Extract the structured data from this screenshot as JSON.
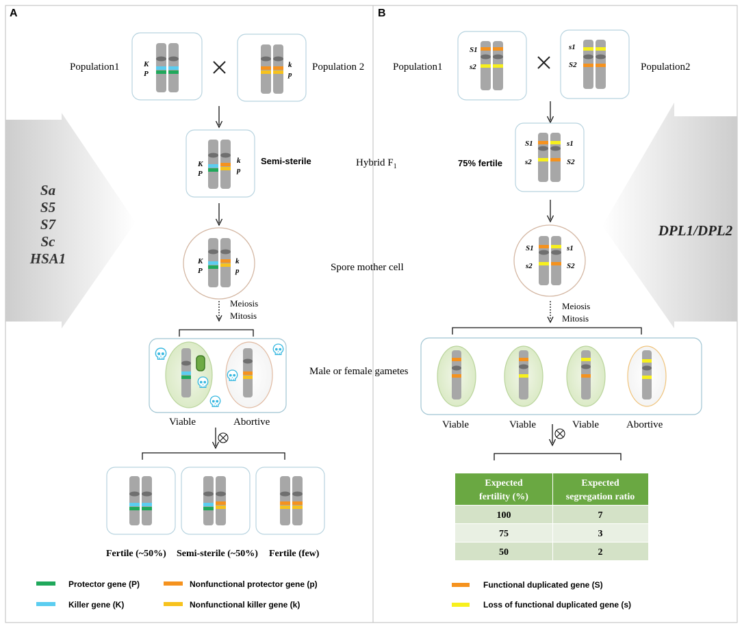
{
  "panelA": {
    "letter": "A",
    "pop1": "Population1",
    "pop2": "Population 2",
    "side_genes": [
      "Sa",
      "S5",
      "S7",
      "Sc",
      "HSA1"
    ],
    "parent1": {
      "l1": "K",
      "l2": "P"
    },
    "parent2": {
      "l1": "k",
      "l2": "p"
    },
    "f1_label": "Semi-sterile",
    "meiosis": "Meiosis",
    "mitosis": "Mitosis",
    "viable": "Viable",
    "abortive": "Abortive",
    "progeny": [
      "Fertile (~50%)",
      "Semi-sterile (~50%)",
      "Fertile (few)"
    ],
    "legend": [
      {
        "label": "Protector gene (P)",
        "color": "#1fa85b"
      },
      {
        "label": "Killer  gene (K)",
        "color": "#5bcdf0"
      },
      {
        "label": "Nonfunctional protector gene (p)",
        "color": "#f5921e"
      },
      {
        "label": "Nonfunctional killer  gene (k)",
        "color": "#f7c21d"
      }
    ]
  },
  "center": {
    "hybrid": "Hybrid F",
    "hybrid_sub": "1",
    "spore": "Spore mother cell",
    "gametes": "Male or female gametes"
  },
  "panelB": {
    "letter": "B",
    "pop1": "Population1",
    "pop2": "Population2",
    "side_gene": "DPL1/DPL2",
    "parent1": {
      "l1": "S1",
      "l2": "s2"
    },
    "parent2": {
      "l1": "s1",
      "l2": "S2"
    },
    "f1_label": "75% fertile",
    "meiosis": "Meiosis",
    "mitosis": "Mitosis",
    "gamete_labels": [
      "Viable",
      "Viable",
      "Viable",
      "Abortive"
    ],
    "table": {
      "headers": [
        "Expected fertility (%)",
        "Expected segregation ratio"
      ],
      "rows": [
        [
          "100",
          "7"
        ],
        [
          "75",
          "3"
        ],
        [
          "50",
          "2"
        ]
      ]
    },
    "legend": [
      {
        "label": "Functional duplicated gene (S)",
        "color": "#f5921e"
      },
      {
        "label": "Loss of functional duplicated gene (s)",
        "color": "#f7f01d"
      }
    ]
  },
  "colors": {
    "green": "#1fa85b",
    "cyan": "#5bcdf0",
    "orange": "#f5921e",
    "gold": "#f7c21d",
    "yellow": "#f7f01d",
    "table_header": "#6aa842",
    "chromosome": "#a7a7a7"
  }
}
